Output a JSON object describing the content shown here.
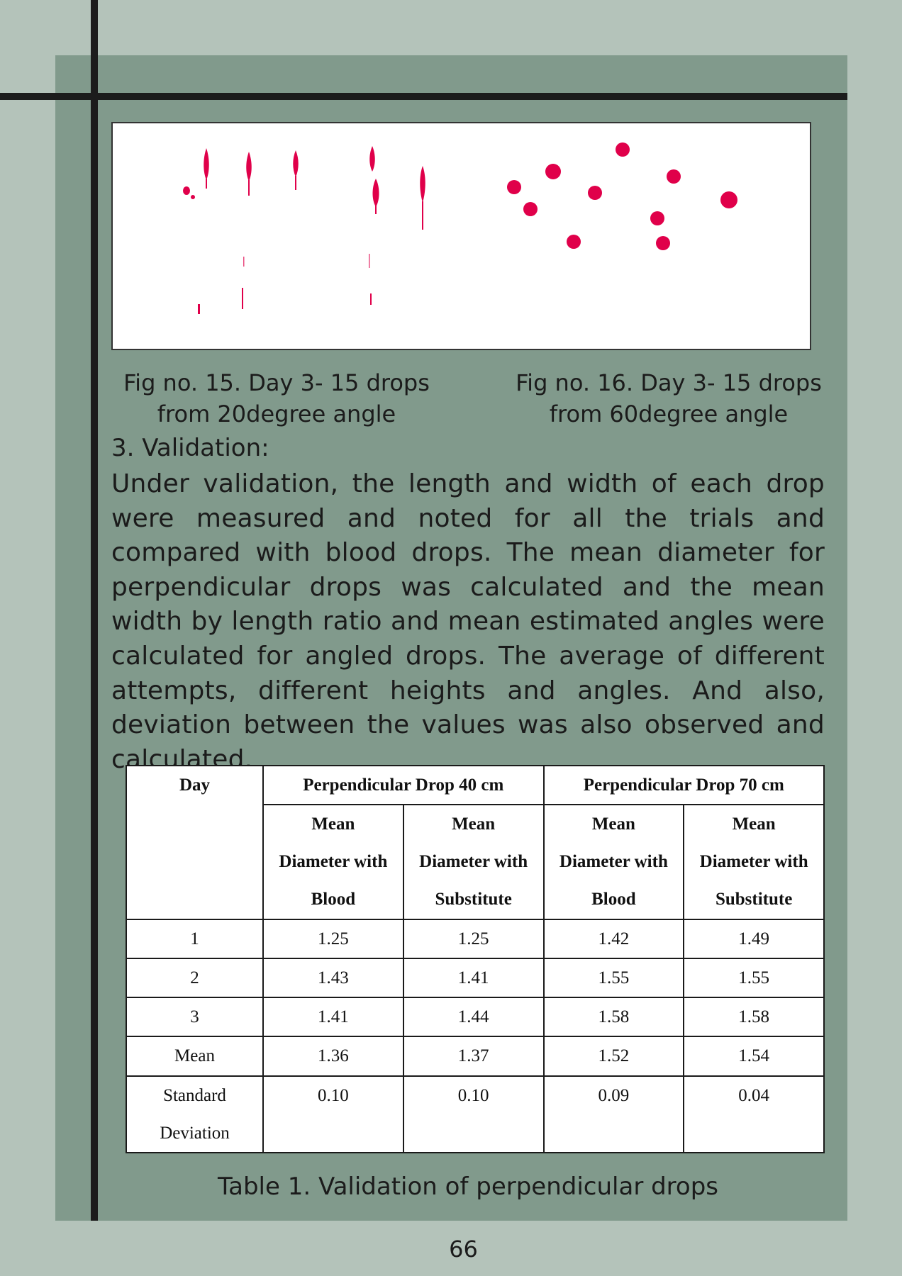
{
  "figure_captions": {
    "fig15": {
      "line1": "Fig no. 15. Day 3- 15 drops",
      "line2": "from 20degree angle"
    },
    "fig16": {
      "line1": "Fig no. 16. Day 3- 15 drops",
      "line2": "from 60degree angle"
    }
  },
  "section": {
    "heading": "3. Validation:",
    "paragraph": "Under validation, the length and width of each drop were measured and noted for all the trials and compared with blood drops. The mean diameter for perpendicular drops was calculated and the mean width by length ratio and mean estimated angles were calculated for angled drops. The average of different attempts, different heights and angles. And also, deviation between the values was also observed and calculated."
  },
  "table": {
    "day_header": "Day",
    "group_headers": [
      "Perpendicular Drop 40 cm",
      "Perpendicular Drop 70 cm"
    ],
    "sub_headers": [
      [
        "Mean",
        "Diameter with",
        "Blood"
      ],
      [
        "Mean",
        "Diameter with",
        "Substitute"
      ],
      [
        "Mean",
        "Diameter with",
        "Blood"
      ],
      [
        "Mean",
        "Diameter with",
        "Substitute"
      ]
    ],
    "rows": [
      {
        "label": [
          "1"
        ],
        "values": [
          "1.25",
          "1.25",
          "1.42",
          "1.49"
        ]
      },
      {
        "label": [
          "2"
        ],
        "values": [
          "1.43",
          "1.41",
          "1.55",
          "1.55"
        ]
      },
      {
        "label": [
          "3"
        ],
        "values": [
          "1.41",
          "1.44",
          "1.58",
          "1.58"
        ]
      },
      {
        "label": [
          "Mean"
        ],
        "values": [
          "1.36",
          "1.37",
          "1.52",
          "1.54"
        ]
      },
      {
        "label": [
          "Standard",
          "Deviation"
        ],
        "values": [
          "0.10",
          "0.10",
          "0.09",
          "0.04"
        ]
      }
    ],
    "caption": "Table 1. Validation of perpendicular drops"
  },
  "page_number": "66",
  "colors": {
    "background": "#b4c3ba",
    "panel": "#819a8c",
    "rule": "#1c1c1c",
    "drop": "#e0004a"
  }
}
